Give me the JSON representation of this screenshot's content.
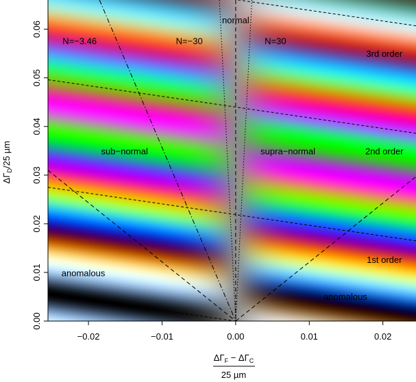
{
  "chart_data": {
    "type": "heatmap",
    "title": "",
    "xlabel": {
      "numerator": "ΔΓF − ΔΓC",
      "numerator_parts": [
        "Δ",
        "Γ",
        "F",
        " − Δ",
        "Γ",
        "C"
      ],
      "denominator": "25 µm"
    },
    "ylabel": {
      "text": "ΔΓD/25 µm",
      "parts": [
        "Δ",
        "Γ",
        "D",
        "/25 µm"
      ]
    },
    "xlim": [
      -0.0255,
      0.0245
    ],
    "ylim": [
      0.0,
      0.066
    ],
    "x_ticks": [
      -0.02,
      -0.01,
      0.0,
      0.01,
      0.02
    ],
    "x_tick_labels": [
      "−0.02",
      "−0.01",
      "0.00",
      "0.01",
      "0.02"
    ],
    "y_ticks": [
      0.0,
      0.01,
      0.02,
      0.03,
      0.04,
      0.05,
      0.06
    ],
    "y_tick_labels": [
      "0.00",
      "0.01",
      "0.02",
      "0.03",
      "0.04",
      "0.05",
      "0.06"
    ],
    "colormap": "Michel-Levy birefringence interference colors",
    "grid": false,
    "region_labels": [
      {
        "text": "N=−3.46",
        "x": -0.0212,
        "y": 0.0575
      },
      {
        "text": "N=−30",
        "x": -0.0063,
        "y": 0.0575
      },
      {
        "text": "normal",
        "x": 0.0,
        "y": 0.0618
      },
      {
        "text": "N=30",
        "x": 0.0054,
        "y": 0.0575
      },
      {
        "text": "3rd order",
        "x": 0.0202,
        "y": 0.0549
      },
      {
        "text": "sub−normal",
        "x": -0.0151,
        "y": 0.0348
      },
      {
        "text": "supra−normal",
        "x": 0.0071,
        "y": 0.0348
      },
      {
        "text": "2nd order",
        "x": 0.0202,
        "y": 0.0348
      },
      {
        "text": "1st order",
        "x": 0.0202,
        "y": 0.0125
      },
      {
        "text": "anomalous",
        "x": -0.0207,
        "y": 0.0098
      },
      {
        "text": "anomalous",
        "x": 0.0149,
        "y": 0.0049
      }
    ],
    "lines": [
      {
        "name": "N=−3.46",
        "style": "dotdash",
        "points": [
          [
            -0.0185,
            0.066
          ],
          [
            0.0,
            0.0
          ]
        ]
      },
      {
        "name": "N=−30",
        "style": "dotted",
        "points": [
          [
            -0.0022,
            0.066
          ],
          [
            0.0,
            0.0
          ]
        ]
      },
      {
        "name": "N=30",
        "style": "dotted",
        "points": [
          [
            0.0022,
            0.066
          ],
          [
            0.0,
            0.0
          ]
        ]
      },
      {
        "name": "normal",
        "style": "dashed",
        "points": [
          [
            0.0,
            0.066
          ],
          [
            0.0,
            0.0
          ]
        ]
      },
      {
        "name": "anomalous-left",
        "style": "dashed",
        "points": [
          [
            -0.0255,
            0.031
          ],
          [
            0.0,
            0.0
          ]
        ]
      },
      {
        "name": "anomalous-right",
        "style": "dashed",
        "points": [
          [
            0.0,
            0.0
          ],
          [
            0.0245,
            0.0297
          ]
        ]
      },
      {
        "name": "order-1",
        "style": "shortdash",
        "points": [
          [
            -0.0255,
            0.0275
          ],
          [
            0.0245,
            0.0165
          ]
        ]
      },
      {
        "name": "order-2",
        "style": "shortdash",
        "points": [
          [
            -0.0255,
            0.0496
          ],
          [
            0.0245,
            0.0386
          ]
        ]
      },
      {
        "name": "order-3",
        "style": "shortdash",
        "points": [
          [
            -0.0255,
            0.0717
          ],
          [
            0.0245,
            0.0607
          ]
        ]
      },
      {
        "name": "order-0",
        "style": "shortdash",
        "points": [
          [
            -0.0255,
            0.0055
          ],
          [
            0.0,
            0.0
          ]
        ]
      }
    ]
  }
}
